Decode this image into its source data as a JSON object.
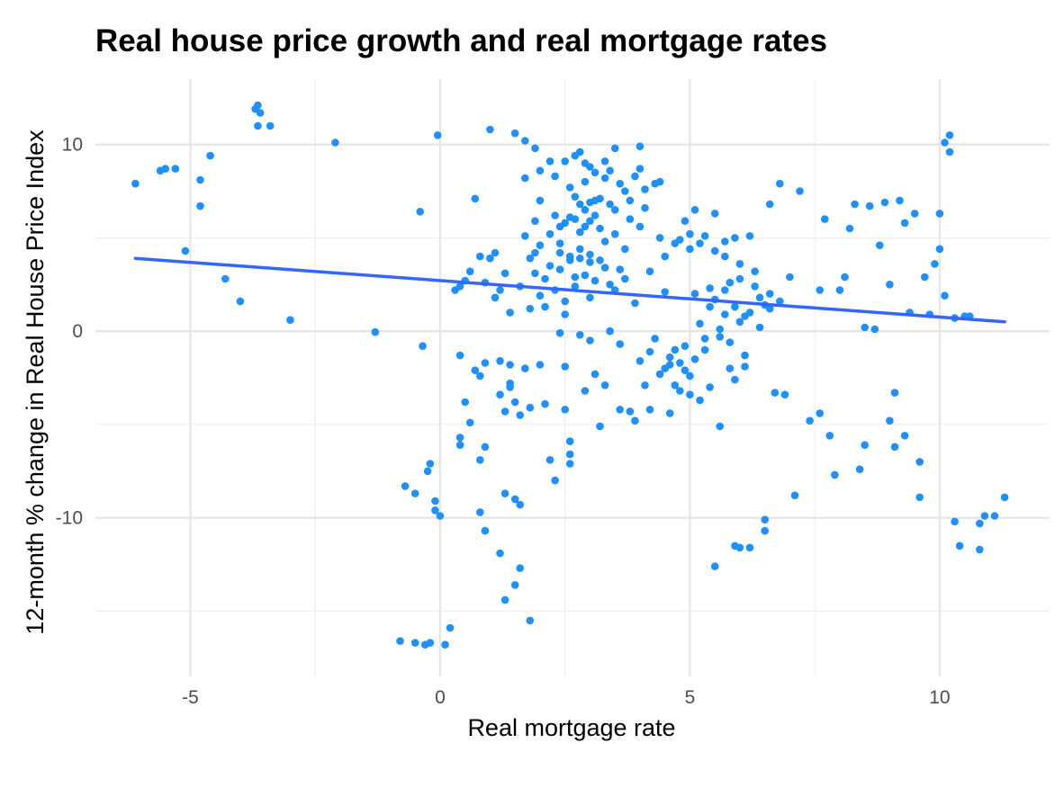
{
  "chart_data": {
    "type": "scatter",
    "title": "Real house price growth and real mortgage rates",
    "xlabel": "Real mortgage rate",
    "ylabel": "12-month % change in Real House Price Index",
    "xlim": [
      -6.9,
      12.2
    ],
    "ylim": [
      -18.5,
      13.5
    ],
    "xticks": [
      -5,
      0,
      5,
      10
    ],
    "xtick_labels": [
      "-5",
      "0",
      "5",
      "10"
    ],
    "yticks": [
      -10,
      0,
      10
    ],
    "ytick_labels": [
      "-10",
      "0",
      "10"
    ],
    "grid": true,
    "point_color": "#1e90ff",
    "trend_color": "#3366ff",
    "trend_line": {
      "x": [
        -6.1,
        11.3
      ],
      "y": [
        3.9,
        0.5
      ]
    },
    "points": [
      [
        -6.1,
        7.9
      ],
      [
        -5.6,
        8.6
      ],
      [
        -5.5,
        8.7
      ],
      [
        -5.3,
        8.7
      ],
      [
        -5.1,
        4.3
      ],
      [
        -4.8,
        8.1
      ],
      [
        -4.8,
        6.7
      ],
      [
        -4.6,
        9.4
      ],
      [
        -4.3,
        2.8
      ],
      [
        -4.0,
        1.6
      ],
      [
        -3.7,
        11.9
      ],
      [
        -3.65,
        12.1
      ],
      [
        -3.6,
        11.7
      ],
      [
        -3.65,
        11.0
      ],
      [
        -3.4,
        11.0
      ],
      [
        -3.0,
        0.6
      ],
      [
        -2.1,
        10.1
      ],
      [
        -1.3,
        -0.05
      ],
      [
        -0.7,
        -8.3
      ],
      [
        -0.5,
        -8.7
      ],
      [
        -0.5,
        -16.7
      ],
      [
        -0.4,
        6.4
      ],
      [
        -0.35,
        -0.8
      ],
      [
        -0.3,
        -16.8
      ],
      [
        -0.25,
        -7.5
      ],
      [
        -0.2,
        -16.7
      ],
      [
        -0.2,
        -7.1
      ],
      [
        -0.1,
        -9.1
      ],
      [
        -0.1,
        -9.6
      ],
      [
        -0.05,
        10.5
      ],
      [
        0.0,
        -9.9
      ],
      [
        0.2,
        -15.9
      ],
      [
        0.4,
        -6.1
      ],
      [
        0.4,
        -5.7
      ],
      [
        0.4,
        -1.3
      ],
      [
        0.4,
        2.4
      ],
      [
        0.5,
        -3.8
      ],
      [
        0.6,
        -4.9
      ],
      [
        0.7,
        -2.1
      ],
      [
        0.7,
        7.1
      ],
      [
        0.8,
        -9.7
      ],
      [
        0.8,
        -6.9
      ],
      [
        0.8,
        -2.4
      ],
      [
        0.9,
        -10.7
      ],
      [
        0.9,
        -6.2
      ],
      [
        0.9,
        -1.7
      ],
      [
        1.0,
        3.9
      ],
      [
        1.0,
        10.8
      ],
      [
        1.1,
        4.2
      ],
      [
        1.2,
        -11.9
      ],
      [
        1.2,
        -1.6
      ],
      [
        1.2,
        -3.4
      ],
      [
        1.3,
        -8.7
      ],
      [
        1.3,
        -14.4
      ],
      [
        1.3,
        -4.3
      ],
      [
        1.4,
        -2.8
      ],
      [
        1.4,
        -1.8
      ],
      [
        1.5,
        -9.0
      ],
      [
        1.5,
        -13.6
      ],
      [
        1.5,
        -3.8
      ],
      [
        1.5,
        10.6
      ],
      [
        1.6,
        -12.7
      ],
      [
        1.6,
        -9.3
      ],
      [
        1.6,
        -4.5
      ],
      [
        1.7,
        -2.0
      ],
      [
        1.7,
        5.1
      ],
      [
        1.7,
        8.2
      ],
      [
        1.8,
        -15.5
      ],
      [
        1.8,
        -4.1
      ],
      [
        1.8,
        3.9
      ],
      [
        1.9,
        3.1
      ],
      [
        1.9,
        4.2
      ],
      [
        1.9,
        5.9
      ],
      [
        2.0,
        -1.8
      ],
      [
        2.0,
        1.9
      ],
      [
        2.0,
        4.6
      ],
      [
        2.0,
        7.0
      ],
      [
        2.1,
        1.3
      ],
      [
        2.1,
        -3.9
      ],
      [
        2.2,
        5.2
      ],
      [
        2.2,
        3.5
      ],
      [
        2.2,
        -6.9
      ],
      [
        2.3,
        -8.0
      ],
      [
        2.3,
        8.3
      ],
      [
        2.4,
        5.6
      ],
      [
        2.4,
        4.7
      ],
      [
        2.4,
        3.3
      ],
      [
        2.5,
        0.9
      ],
      [
        2.5,
        -1.9
      ],
      [
        2.5,
        -4.2
      ],
      [
        2.6,
        -5.9
      ],
      [
        2.6,
        -7.1
      ],
      [
        2.6,
        6.1
      ],
      [
        2.6,
        3.8
      ],
      [
        2.7,
        2.9
      ],
      [
        2.7,
        9.4
      ],
      [
        2.7,
        7.2
      ],
      [
        2.8,
        5.3
      ],
      [
        2.8,
        4.4
      ],
      [
        2.8,
        -0.2
      ],
      [
        2.9,
        -3.2
      ],
      [
        2.9,
        9.0
      ],
      [
        2.9,
        6.5
      ],
      [
        3.0,
        5.9
      ],
      [
        3.0,
        3.7
      ],
      [
        3.0,
        1.8
      ],
      [
        3.1,
        -2.3
      ],
      [
        3.1,
        8.5
      ],
      [
        3.2,
        7.1
      ],
      [
        3.2,
        5.5
      ],
      [
        3.2,
        -5.1
      ],
      [
        3.3,
        9.1
      ],
      [
        3.3,
        4.8
      ],
      [
        3.4,
        2.5
      ],
      [
        3.4,
        6.8
      ],
      [
        3.5,
        9.8
      ],
      [
        3.5,
        5.2
      ],
      [
        3.6,
        3.3
      ],
      [
        3.6,
        -0.7
      ],
      [
        3.7,
        7.5
      ],
      [
        3.7,
        4.4
      ],
      [
        3.8,
        -4.3
      ],
      [
        3.8,
        6.0
      ],
      [
        3.9,
        8.3
      ],
      [
        3.9,
        1.5
      ],
      [
        4.0,
        9.9
      ],
      [
        4.0,
        5.6
      ],
      [
        4.0,
        -1.6
      ],
      [
        4.1,
        -2.9
      ],
      [
        4.1,
        7.6
      ],
      [
        4.2,
        3.2
      ],
      [
        4.2,
        -4.2
      ],
      [
        4.3,
        -0.4
      ],
      [
        4.4,
        5.0
      ],
      [
        4.4,
        8.0
      ],
      [
        4.5,
        2.1
      ],
      [
        4.5,
        -2.0
      ],
      [
        4.6,
        -4.4
      ],
      [
        4.6,
        -1.4
      ],
      [
        4.7,
        4.7
      ],
      [
        4.7,
        -1.0
      ],
      [
        4.8,
        -3.2
      ],
      [
        4.8,
        -1.7
      ],
      [
        4.9,
        5.9
      ],
      [
        4.9,
        -0.8
      ],
      [
        5.0,
        -2.4
      ],
      [
        5.0,
        4.4
      ],
      [
        5.1,
        2.0
      ],
      [
        5.1,
        6.5
      ],
      [
        5.2,
        0.4
      ],
      [
        5.2,
        -3.7
      ],
      [
        5.3,
        5.1
      ],
      [
        5.3,
        -1.0
      ],
      [
        5.4,
        1.3
      ],
      [
        5.4,
        2.3
      ],
      [
        5.5,
        -12.6
      ],
      [
        5.5,
        6.3
      ],
      [
        5.6,
        -5.1
      ],
      [
        5.6,
        -0.3
      ],
      [
        5.7,
        0.9
      ],
      [
        5.7,
        4.0
      ],
      [
        5.8,
        2.6
      ],
      [
        5.8,
        -2.0
      ],
      [
        5.9,
        -11.5
      ],
      [
        5.9,
        1.3
      ],
      [
        6.0,
        -11.6
      ],
      [
        6.0,
        3.6
      ],
      [
        6.1,
        0.8
      ],
      [
        6.1,
        -1.3
      ],
      [
        6.2,
        -11.6
      ],
      [
        6.2,
        5.1
      ],
      [
        6.3,
        2.4
      ],
      [
        6.4,
        0.2
      ],
      [
        6.5,
        -10.7
      ],
      [
        6.5,
        -10.1
      ],
      [
        6.6,
        6.8
      ],
      [
        6.6,
        2.0
      ],
      [
        6.7,
        -3.3
      ],
      [
        6.8,
        7.9
      ],
      [
        6.9,
        -3.4
      ],
      [
        7.0,
        2.9
      ],
      [
        7.1,
        -8.8
      ],
      [
        7.2,
        7.5
      ],
      [
        7.4,
        -4.8
      ],
      [
        7.6,
        -4.4
      ],
      [
        7.6,
        2.2
      ],
      [
        7.7,
        6.0
      ],
      [
        7.8,
        -5.6
      ],
      [
        7.9,
        -7.7
      ],
      [
        8.0,
        2.2
      ],
      [
        8.1,
        2.9
      ],
      [
        8.2,
        5.5
      ],
      [
        8.3,
        6.8
      ],
      [
        8.4,
        -7.4
      ],
      [
        8.5,
        -6.1
      ],
      [
        8.5,
        0.2
      ],
      [
        8.6,
        6.7
      ],
      [
        8.7,
        0.1
      ],
      [
        8.8,
        4.6
      ],
      [
        8.9,
        6.9
      ],
      [
        9.0,
        -4.8
      ],
      [
        9.0,
        2.5
      ],
      [
        9.1,
        -6.2
      ],
      [
        9.1,
        -3.3
      ],
      [
        9.2,
        7.0
      ],
      [
        9.3,
        5.8
      ],
      [
        9.3,
        -5.6
      ],
      [
        9.4,
        1.0
      ],
      [
        9.5,
        6.3
      ],
      [
        9.6,
        -7.0
      ],
      [
        9.6,
        -8.9
      ],
      [
        9.7,
        2.9
      ],
      [
        9.8,
        0.9
      ],
      [
        9.9,
        3.6
      ],
      [
        10.0,
        6.3
      ],
      [
        10.0,
        4.4
      ],
      [
        10.1,
        10.1
      ],
      [
        10.1,
        1.9
      ],
      [
        10.2,
        10.5
      ],
      [
        10.2,
        9.6
      ],
      [
        10.3,
        0.7
      ],
      [
        10.3,
        -10.2
      ],
      [
        10.4,
        -11.5
      ],
      [
        10.5,
        0.8
      ],
      [
        10.6,
        0.8
      ],
      [
        10.8,
        -11.7
      ],
      [
        10.8,
        -10.3
      ],
      [
        10.9,
        -9.9
      ],
      [
        11.1,
        -9.9
      ],
      [
        11.3,
        -8.9
      ],
      [
        -0.8,
        -16.6
      ],
      [
        0.1,
        -16.8
      ],
      [
        1.4,
        -3.0
      ],
      [
        2.4,
        -0.1
      ],
      [
        2.6,
        -6.6
      ],
      [
        3.0,
        -0.5
      ],
      [
        3.3,
        -2.9
      ],
      [
        3.4,
        0.0
      ],
      [
        3.6,
        -4.2
      ],
      [
        3.9,
        -4.8
      ],
      [
        2.3,
        6.2
      ],
      [
        2.5,
        5.8
      ],
      [
        2.7,
        6.0
      ],
      [
        2.9,
        5.6
      ],
      [
        3.1,
        6.2
      ],
      [
        2.4,
        4.2
      ],
      [
        2.6,
        4.0
      ],
      [
        2.8,
        3.9
      ],
      [
        3.0,
        4.1
      ],
      [
        3.2,
        3.8
      ],
      [
        4.5,
        4.0
      ],
      [
        4.8,
        4.9
      ],
      [
        5.0,
        5.2
      ],
      [
        5.2,
        4.7
      ],
      [
        5.5,
        4.3
      ],
      [
        5.7,
        4.8
      ],
      [
        5.9,
        5.0
      ],
      [
        4.6,
        -1.8
      ],
      [
        4.9,
        -2.1
      ],
      [
        5.1,
        -1.5
      ],
      [
        5.3,
        -0.4
      ],
      [
        5.6,
        0.1
      ],
      [
        5.8,
        -0.6
      ],
      [
        6.0,
        0.5
      ],
      [
        6.2,
        1.0
      ],
      [
        6.4,
        1.8
      ],
      [
        6.6,
        1.2
      ],
      [
        6.8,
        1.6
      ],
      [
        4.2,
        -1.1
      ],
      [
        4.4,
        -2.3
      ],
      [
        4.7,
        -2.9
      ],
      [
        5.0,
        -3.4
      ],
      [
        5.4,
        -3.0
      ],
      [
        5.9,
        -2.6
      ],
      [
        6.1,
        -1.9
      ],
      [
        5.5,
        1.7
      ],
      [
        5.7,
        2.2
      ],
      [
        6.0,
        2.8
      ],
      [
        6.3,
        3.2
      ],
      [
        6.5,
        1.4
      ],
      [
        2.1,
        2.8
      ],
      [
        2.3,
        2.2
      ],
      [
        2.5,
        1.6
      ],
      [
        2.7,
        2.4
      ],
      [
        2.9,
        3.0
      ],
      [
        3.1,
        2.7
      ],
      [
        3.3,
        3.4
      ],
      [
        3.5,
        2.2
      ],
      [
        3.7,
        2.8
      ],
      [
        1.8,
        1.2
      ],
      [
        1.6,
        2.4
      ],
      [
        1.4,
        1.0
      ],
      [
        1.3,
        3.1
      ],
      [
        1.2,
        2.2
      ],
      [
        1.1,
        1.8
      ],
      [
        0.9,
        2.6
      ],
      [
        0.8,
        4.0
      ],
      [
        0.6,
        3.2
      ],
      [
        0.5,
        2.7
      ],
      [
        0.3,
        2.2
      ],
      [
        2.5,
        9.1
      ],
      [
        2.8,
        9.6
      ],
      [
        3.0,
        8.8
      ],
      [
        3.3,
        8.2
      ],
      [
        3.6,
        7.9
      ],
      [
        3.8,
        7.0
      ],
      [
        4.1,
        6.6
      ],
      [
        4.3,
        7.9
      ],
      [
        4.0,
        8.7
      ],
      [
        3.4,
        8.6
      ],
      [
        2.2,
        9.1
      ],
      [
        2.0,
        8.6
      ],
      [
        1.9,
        9.8
      ],
      [
        1.7,
        10.2
      ],
      [
        2.9,
        8.0
      ],
      [
        3.1,
        7.0
      ],
      [
        3.5,
        6.5
      ],
      [
        2.6,
        7.7
      ],
      [
        2.8,
        6.8
      ],
      [
        3.0,
        6.9
      ]
    ]
  }
}
